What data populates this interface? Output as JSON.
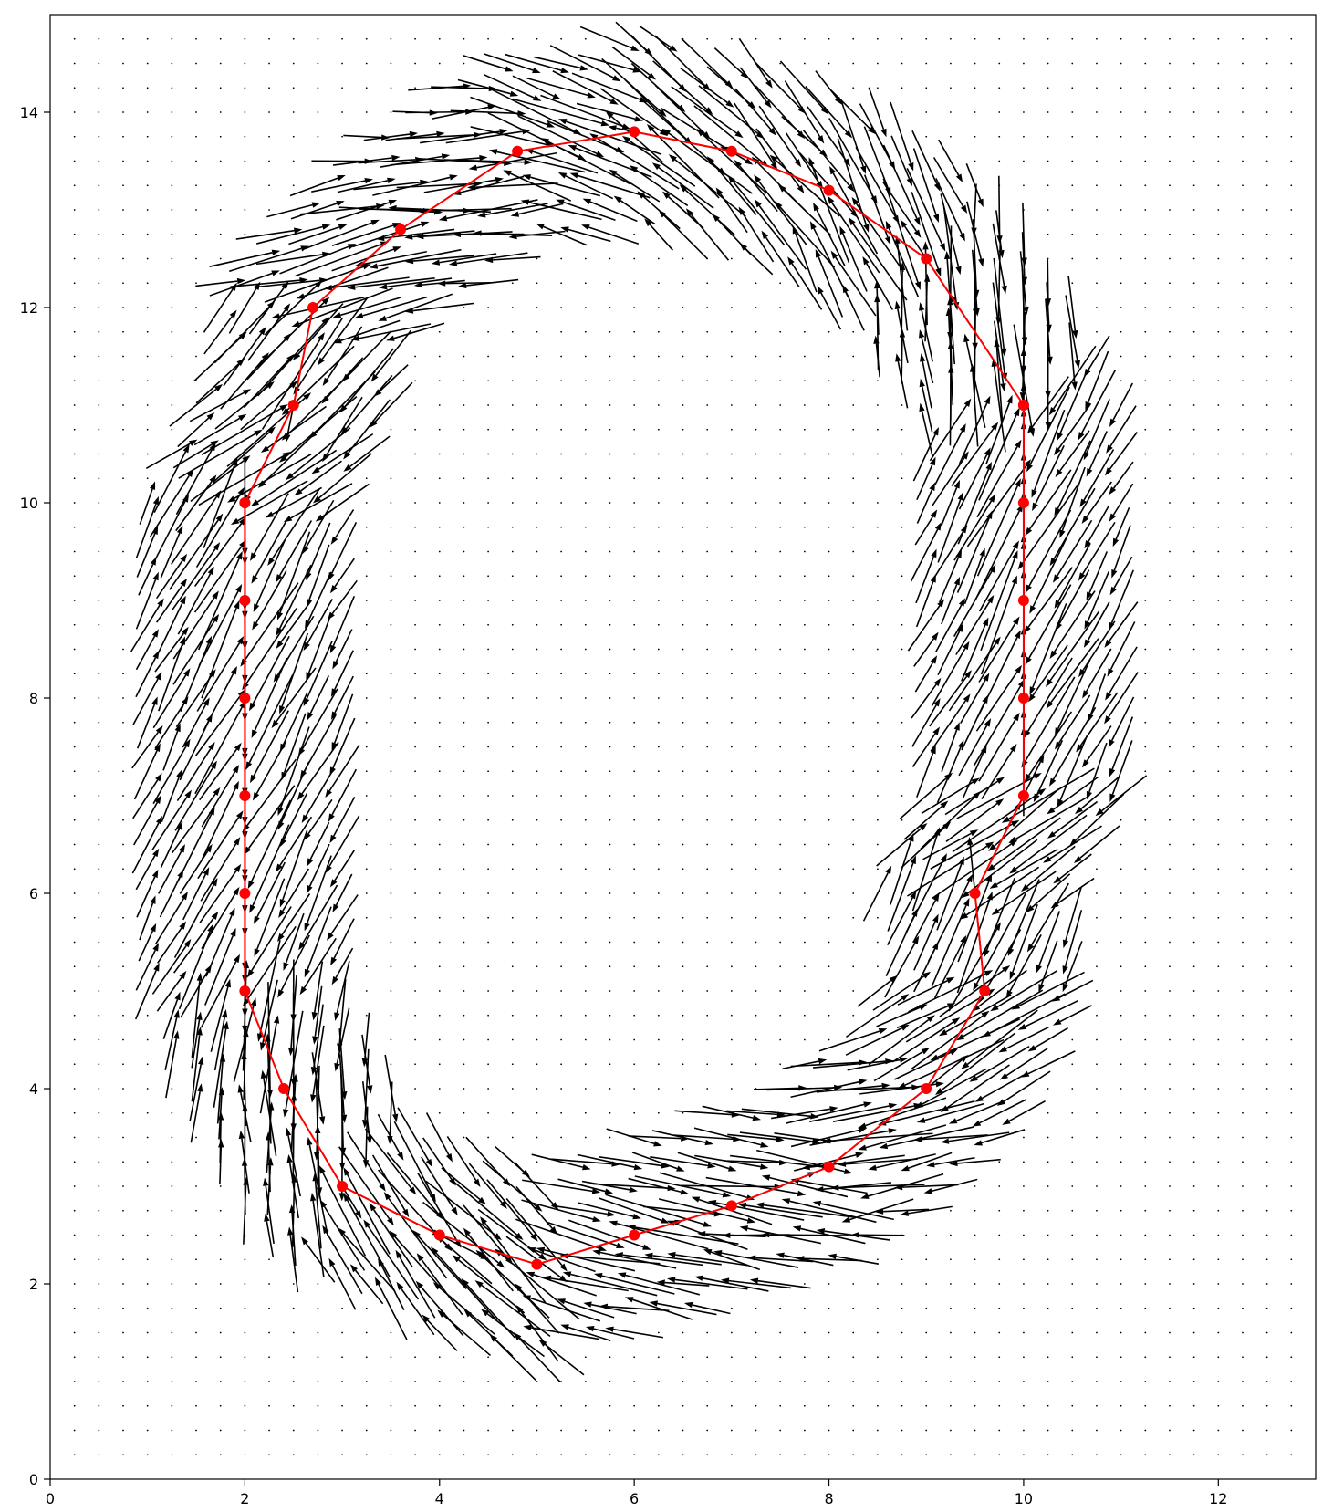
{
  "chart_data": {
    "type": "quiver",
    "title": "",
    "xlabel": "",
    "ylabel": "",
    "xlim": [
      0,
      13
    ],
    "ylim": [
      0,
      15
    ],
    "xticks": [
      0,
      2,
      4,
      6,
      8,
      10,
      12
    ],
    "yticks": [
      0,
      2,
      4,
      6,
      8,
      10,
      12,
      14
    ],
    "grid_step": 0.25,
    "grid": false,
    "colors": {
      "path": "#ff0000",
      "arrows": "#000000",
      "points": "#000000"
    },
    "path": {
      "x": [
        2,
        2,
        2,
        2,
        2,
        2,
        2.4,
        3,
        4,
        5,
        6,
        7,
        8,
        9,
        9.6,
        9.5,
        10,
        10,
        10,
        10,
        10,
        10,
        9,
        8,
        7,
        6,
        4.8,
        3.6,
        2.7,
        2.5,
        2
      ],
      "y": [
        10,
        9,
        8,
        7,
        6,
        5,
        4,
        3,
        2.5,
        2.2,
        2.5,
        2.8,
        3.2,
        4,
        5,
        6,
        7,
        8,
        9,
        10,
        11,
        11,
        12.5,
        13.2,
        13.6,
        13.8,
        13.6,
        12.8,
        12,
        11,
        10
      ]
    },
    "field": {
      "band_halfwidth": 1.0,
      "max_arrow_length": 1.0,
      "pivot": "middle",
      "description_of_direction": "arrows point roughly along the path in the inner band and reverse in the outer band"
    }
  }
}
